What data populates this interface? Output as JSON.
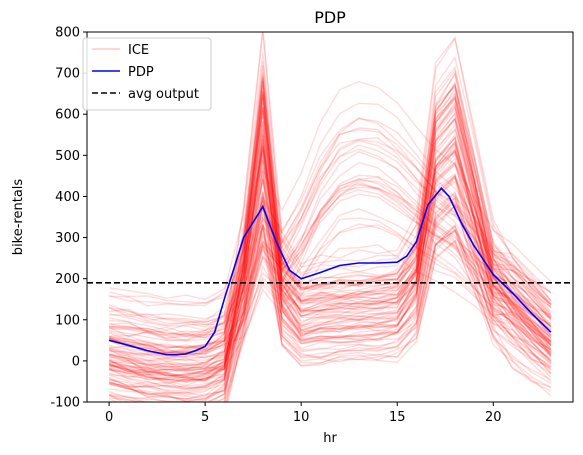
{
  "chart_data": {
    "type": "line",
    "title": "PDP",
    "xlabel": "hr",
    "ylabel": "bike-rentals",
    "xlim": [
      -1.15,
      24.15
    ],
    "ylim": [
      -100,
      800
    ],
    "xticks": [
      0,
      5,
      10,
      15,
      20
    ],
    "yticks": [
      -100,
      0,
      100,
      200,
      300,
      400,
      500,
      600,
      700,
      800
    ],
    "grid": false,
    "legend_position": "top-left",
    "legend": [
      {
        "label": "ICE",
        "color": "#ff0000",
        "style": "solid-faint"
      },
      {
        "label": "PDP",
        "color": "#0000ff",
        "style": "solid"
      },
      {
        "label": "avg output",
        "color": "#000000",
        "style": "dashed"
      }
    ],
    "x": [
      0,
      1,
      2,
      3,
      4,
      5,
      6,
      7,
      8,
      9,
      10,
      11,
      12,
      13,
      14,
      15,
      16,
      17,
      18,
      19,
      20,
      21,
      22,
      23
    ],
    "pdp": {
      "name": "PDP",
      "color": "#0000ff",
      "x": [
        0,
        1,
        2,
        3,
        3.5,
        4,
        4.5,
        5,
        5.5,
        6,
        7,
        8,
        8.7,
        9.4,
        10,
        11,
        12,
        13,
        14,
        15,
        15.5,
        16,
        16.6,
        17.3,
        17.7,
        18.4,
        19,
        20,
        21,
        22,
        23
      ],
      "values": [
        50,
        38,
        25,
        15,
        15,
        17,
        25,
        35,
        70,
        150,
        300,
        375,
        290,
        220,
        200,
        215,
        232,
        238,
        238,
        240,
        255,
        290,
        380,
        420,
        400,
        330,
        280,
        210,
        165,
        115,
        70
      ]
    },
    "avg_output": {
      "name": "avg output",
      "value": 190,
      "color": "#000000"
    },
    "ice": {
      "name": "ICE",
      "color": "#ff0000",
      "count": 110,
      "curve_kind_counts": {
        "commute_peaks": 82,
        "midday_bulge": 28
      },
      "hour_profile_commute": [
        40,
        30,
        20,
        12,
        12,
        15,
        40,
        260,
        630,
        210,
        140,
        150,
        155,
        158,
        162,
        170,
        240,
        560,
        620,
        430,
        230,
        180,
        130,
        80
      ],
      "hour_profile_midday": [
        35,
        25,
        12,
        4,
        2,
        4,
        20,
        150,
        330,
        250,
        330,
        430,
        500,
        520,
        510,
        480,
        430,
        380,
        340,
        280,
        210,
        170,
        120,
        75
      ],
      "seed": 7
    }
  }
}
